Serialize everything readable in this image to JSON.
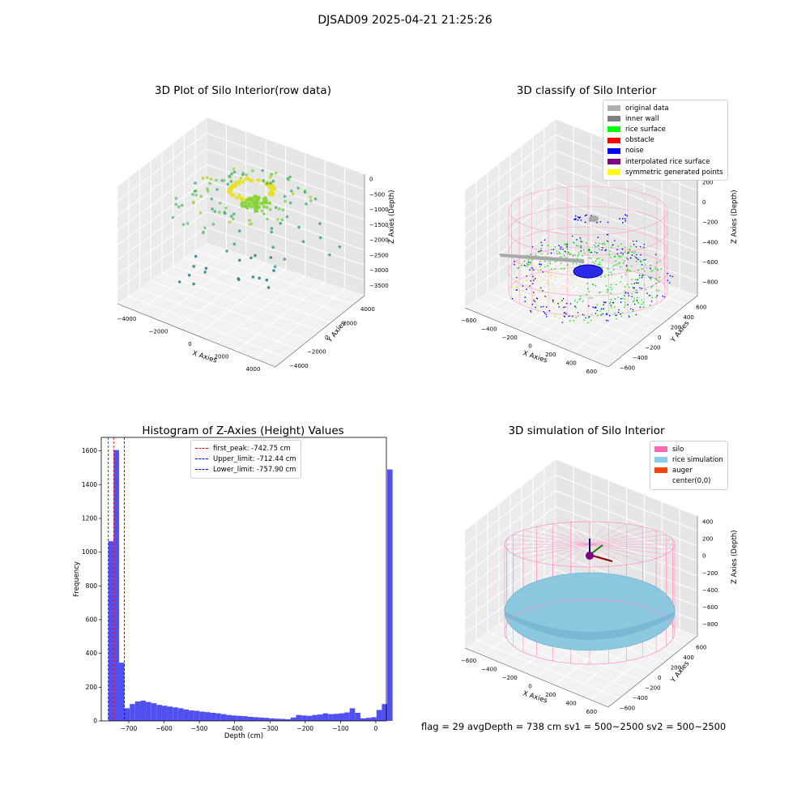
{
  "suptitle": "DJSAD09 2025-04-21 21:25:26",
  "panels": {
    "raw": {
      "title": "3D Plot of Silo Interior(row data)",
      "xlabel": "X Axies",
      "ylabel": "Y Axies",
      "zlabel": "Z Axies (Depth)",
      "xticks": [
        "−4000",
        "−2000",
        "0",
        "2000",
        "4000"
      ],
      "yticks": [
        "−4000",
        "−2000",
        "0",
        "2000",
        "4000"
      ],
      "zticks": [
        "0",
        "−500",
        "−1000",
        "−1500",
        "−2000",
        "−2500",
        "−3000",
        "−3500"
      ]
    },
    "classify": {
      "title": "3D classify of Silo Interior",
      "xlabel": "X Axies",
      "ylabel": "Y Axies",
      "zlabel": "Z Axies (Depth)",
      "xticks": [
        "−600",
        "−400",
        "−200",
        "0",
        "200",
        "400",
        "600"
      ],
      "yticks": [
        "−600",
        "−400",
        "−200",
        "0",
        "200",
        "400",
        "600"
      ],
      "zticks": [
        "200",
        "0",
        "−200",
        "−400",
        "−600",
        "−800"
      ],
      "legend": [
        {
          "label": "original data",
          "color": "#b0b0b0"
        },
        {
          "label": "inner wall",
          "color": "#808080"
        },
        {
          "label": "rice surface",
          "color": "#00ff00"
        },
        {
          "label": "obstacle",
          "color": "#ff0000"
        },
        {
          "label": "noise",
          "color": "#0000ff"
        },
        {
          "label": "interpolated rice surface",
          "color": "#800080"
        },
        {
          "label": "symmetric generated points",
          "color": "#ffff00"
        }
      ]
    },
    "histogram": {
      "title": "Histogram of Z-Axies (Height) Values",
      "xlabel": "Depth (cm)",
      "ylabel": "Frequency",
      "xticks": [
        "−700",
        "−600",
        "−500",
        "−400",
        "−300",
        "−200",
        "−100",
        "0"
      ],
      "yticks": [
        "0",
        "200",
        "400",
        "600",
        "800",
        "1000",
        "1200",
        "1400",
        "1600"
      ],
      "legend": [
        {
          "label": "first_peak: -742.75 cm",
          "color": "#ff0000"
        },
        {
          "label": "Upper_limit: -712.44 cm",
          "color": "#0000cc"
        },
        {
          "label": "Lower_limit: -757.90 cm",
          "color": "#0000cc"
        }
      ]
    },
    "simulation": {
      "title": "3D simulation of Silo Interior",
      "xlabel": "X Axies",
      "ylabel": "Y Axies",
      "zlabel": "Z Axies (Depth)",
      "xticks": [
        "−600",
        "−400",
        "−200",
        "0",
        "200",
        "400",
        "600"
      ],
      "yticks": [
        "−600",
        "−400",
        "−200",
        "0",
        "200",
        "400",
        "600"
      ],
      "zticks": [
        "400",
        "200",
        "0",
        "−200",
        "−400",
        "−600",
        "−800"
      ],
      "legend": [
        {
          "label": "silo",
          "color": "#ff69b4"
        },
        {
          "label": "rice simulation",
          "color": "#87ceeb"
        },
        {
          "label": "auger",
          "color": "#ff4500"
        },
        {
          "label": "center(0,0)",
          "color": "#ffffff"
        }
      ],
      "footer": "flag = 29  avgDepth = 738 cm  sv1 = 500~2500  sv2 = 500~2500"
    }
  },
  "chart_data": [
    {
      "type": "scatter",
      "title": "3D Plot of Silo Interior(row data)",
      "xlabel": "X Axies",
      "ylabel": "Y Axies",
      "zlabel": "Z Axies (Depth)",
      "xlim": [
        -4500,
        4500
      ],
      "ylim": [
        -4500,
        4500
      ],
      "zlim": [
        -3900,
        200
      ],
      "grid": true
    },
    {
      "type": "scatter",
      "title": "3D classify of Silo Interior",
      "xlabel": "X Axies",
      "ylabel": "Y Axies",
      "zlabel": "Z Axies (Depth)",
      "xlim": [
        -700,
        700
      ],
      "ylim": [
        -700,
        700
      ],
      "zlim": [
        -900,
        300
      ],
      "legend_position": "top-right",
      "grid": true
    },
    {
      "type": "bar",
      "title": "Histogram of Z-Axies (Height) Values",
      "xlabel": "Depth (cm)",
      "ylabel": "Frequency",
      "xlim": [
        -778,
        30
      ],
      "ylim": [
        0,
        1680
      ],
      "bin_start": -758,
      "bin_width": 15.2,
      "values": [
        1065,
        1605,
        345,
        75,
        100,
        115,
        120,
        112,
        105,
        95,
        90,
        85,
        80,
        75,
        68,
        62,
        60,
        55,
        52,
        48,
        45,
        40,
        35,
        32,
        30,
        28,
        24,
        22,
        20,
        18,
        15,
        13,
        12,
        10,
        20,
        35,
        32,
        30,
        35,
        38,
        45,
        40,
        42,
        45,
        50,
        75,
        48,
        15,
        18,
        22,
        65,
        100,
        1490
      ],
      "vlines": [
        {
          "label": "first_peak: -742.75 cm",
          "x": -742.75,
          "color": "#ff0000"
        },
        {
          "label": "Upper_limit: -712.44 cm",
          "x": -712.44,
          "color": "#0000cc"
        },
        {
          "label": "Lower_limit: -757.90 cm",
          "x": -757.9,
          "color": "#0000cc"
        }
      ],
      "legend_position": "top-center"
    },
    {
      "type": "scatter",
      "title": "3D simulation of Silo Interior",
      "xlabel": "X Axies",
      "ylabel": "Y Axies",
      "zlabel": "Z Axies (Depth)",
      "xlim": [
        -700,
        700
      ],
      "ylim": [
        -700,
        700
      ],
      "zlim": [
        -900,
        500
      ],
      "legend_position": "top-right",
      "grid": true
    }
  ]
}
